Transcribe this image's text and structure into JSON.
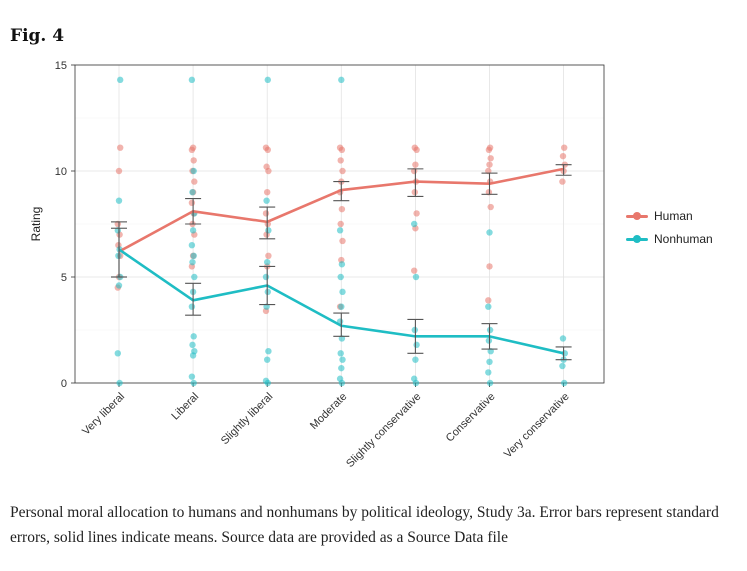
{
  "figure": {
    "title": "Fig. 4",
    "caption": "Personal moral allocation to humans and nonhumans by political ideology, Study 3a. Error bars represent standard errors, solid lines indicate means. Source data are provided as a Source Data file"
  },
  "chart_data": {
    "type": "line",
    "ylabel": "Rating",
    "xlabel": "",
    "ylim": [
      0,
      15
    ],
    "yticks": [
      0,
      5,
      10,
      15
    ],
    "grid": true,
    "legend_position": "right",
    "categories": [
      "Very liberal",
      "Liberal",
      "Slightly liberal",
      "Moderate",
      "Slightly conservative",
      "Conservative",
      "Very conservative"
    ],
    "series": [
      {
        "name": "Human",
        "color": "#e8776c",
        "means": [
          6.2,
          8.1,
          7.6,
          9.1,
          9.5,
          9.4,
          10.1
        ],
        "se_low": [
          5.0,
          7.5,
          6.8,
          8.6,
          8.8,
          8.9,
          9.8
        ],
        "se_high": [
          7.3,
          8.7,
          8.3,
          9.5,
          10.1,
          9.9,
          10.3
        ],
        "points": [
          [
            4.5,
            5.0,
            6.0,
            6.5,
            7.0,
            7.5,
            10.0,
            11.1
          ],
          [
            5.5,
            6.0,
            7.0,
            7.5,
            8.0,
            8.5,
            9.0,
            9.5,
            10.0,
            10.5,
            11.0,
            11.1
          ],
          [
            3.4,
            5.5,
            6.0,
            7.0,
            7.5,
            8.0,
            9.0,
            10.0,
            10.2,
            11.0,
            11.1
          ],
          [
            3.6,
            5.8,
            6.7,
            7.5,
            8.2,
            9.0,
            9.5,
            10.0,
            10.5,
            11.0,
            11.1
          ],
          [
            5.3,
            7.3,
            8.0,
            9.0,
            9.5,
            10.0,
            10.3,
            11.0,
            11.1
          ],
          [
            3.9,
            5.5,
            8.3,
            9.0,
            9.5,
            10.0,
            10.3,
            10.6,
            11.0,
            11.1
          ],
          [
            9.5,
            10.0,
            10.3,
            10.7,
            11.1
          ]
        ]
      },
      {
        "name": "Nonhuman",
        "color": "#1fbdc4",
        "means": [
          6.3,
          3.9,
          4.6,
          2.7,
          2.2,
          2.2,
          1.4
        ],
        "se_low": [
          5.0,
          3.2,
          3.7,
          2.2,
          1.4,
          1.6,
          1.1
        ],
        "se_high": [
          7.6,
          4.7,
          5.5,
          3.3,
          3.0,
          2.8,
          1.7
        ],
        "points": [
          [
            0.0,
            1.4,
            4.6,
            5.0,
            6.0,
            6.3,
            7.2,
            8.6,
            14.3
          ],
          [
            0.0,
            0.3,
            1.3,
            1.5,
            1.8,
            2.2,
            3.6,
            4.3,
            5.0,
            5.7,
            6.0,
            6.5,
            7.2,
            8.0,
            9.0,
            10.0,
            14.3
          ],
          [
            0.0,
            0.1,
            1.1,
            1.5,
            3.6,
            4.3,
            5.0,
            5.7,
            7.2,
            8.6,
            14.3
          ],
          [
            0.0,
            0.2,
            0.7,
            1.1,
            1.4,
            2.1,
            2.9,
            3.6,
            4.3,
            5.0,
            5.6,
            7.2,
            14.3
          ],
          [
            0.0,
            0.2,
            1.1,
            1.8,
            2.5,
            5.0,
            7.5
          ],
          [
            0.0,
            0.5,
            1.0,
            1.5,
            2.0,
            2.5,
            3.6,
            7.1
          ],
          [
            0.0,
            0.8,
            1.1,
            1.4,
            2.1
          ]
        ]
      }
    ]
  }
}
